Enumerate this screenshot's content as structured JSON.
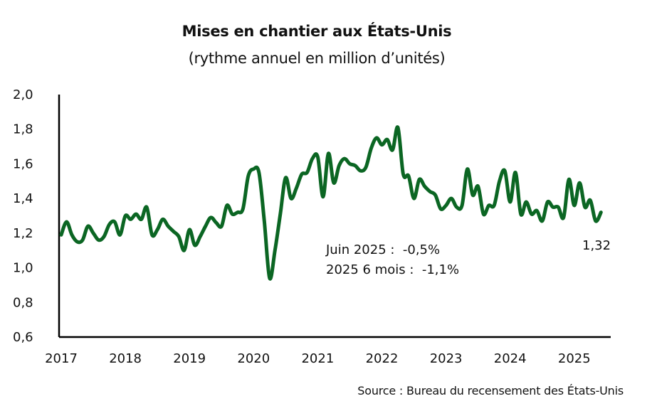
{
  "chart_data": {
    "type": "line",
    "title": "Mises en chantier aux États-Unis",
    "subtitle": "(rythme annuel en million d’unités)",
    "xlabel": "",
    "ylabel": "",
    "source": "Source : Bureau du recensement des États-Unis",
    "ylim": [
      0.6,
      2.0
    ],
    "y_ticks": [
      "2,0",
      "1,8",
      "1,6",
      "1,4",
      "1,2",
      "1,0",
      "0,8",
      "0,6"
    ],
    "y_tick_values": [
      2.0,
      1.8,
      1.6,
      1.4,
      1.2,
      1.0,
      0.8,
      0.6
    ],
    "x_ticks": [
      "2017",
      "2018",
      "2019",
      "2020",
      "2021",
      "2022",
      "2023",
      "2024",
      "2025"
    ],
    "x_start": "2017-01",
    "x_end": "2025-06",
    "frequency": "monthly",
    "grid": false,
    "legend": "none",
    "line_color": "#0b6623",
    "series": [
      {
        "name": "Mises en chantier",
        "values": [
          1.19,
          1.265,
          1.19,
          1.15,
          1.16,
          1.24,
          1.2,
          1.16,
          1.18,
          1.25,
          1.265,
          1.19,
          1.3,
          1.28,
          1.31,
          1.28,
          1.35,
          1.19,
          1.22,
          1.28,
          1.24,
          1.21,
          1.18,
          1.1,
          1.22,
          1.13,
          1.18,
          1.24,
          1.29,
          1.26,
          1.24,
          1.36,
          1.31,
          1.32,
          1.34,
          1.53,
          1.57,
          1.55,
          1.27,
          0.94,
          1.1,
          1.31,
          1.52,
          1.4,
          1.46,
          1.54,
          1.55,
          1.63,
          1.64,
          1.41,
          1.66,
          1.49,
          1.59,
          1.63,
          1.6,
          1.59,
          1.56,
          1.58,
          1.69,
          1.75,
          1.71,
          1.74,
          1.68,
          1.81,
          1.54,
          1.53,
          1.4,
          1.51,
          1.47,
          1.44,
          1.42,
          1.34,
          1.36,
          1.4,
          1.35,
          1.36,
          1.57,
          1.42,
          1.47,
          1.31,
          1.36,
          1.36,
          1.5,
          1.56,
          1.38,
          1.55,
          1.31,
          1.38,
          1.31,
          1.33,
          1.27,
          1.38,
          1.35,
          1.35,
          1.29,
          1.51,
          1.36,
          1.49,
          1.35,
          1.39,
          1.27,
          1.32
        ]
      }
    ],
    "annotations": {
      "last_value": "1,32",
      "lines": [
        "Juin 2025 :  -0,5%",
        "2025 6 mois :  -1,1%"
      ]
    }
  }
}
